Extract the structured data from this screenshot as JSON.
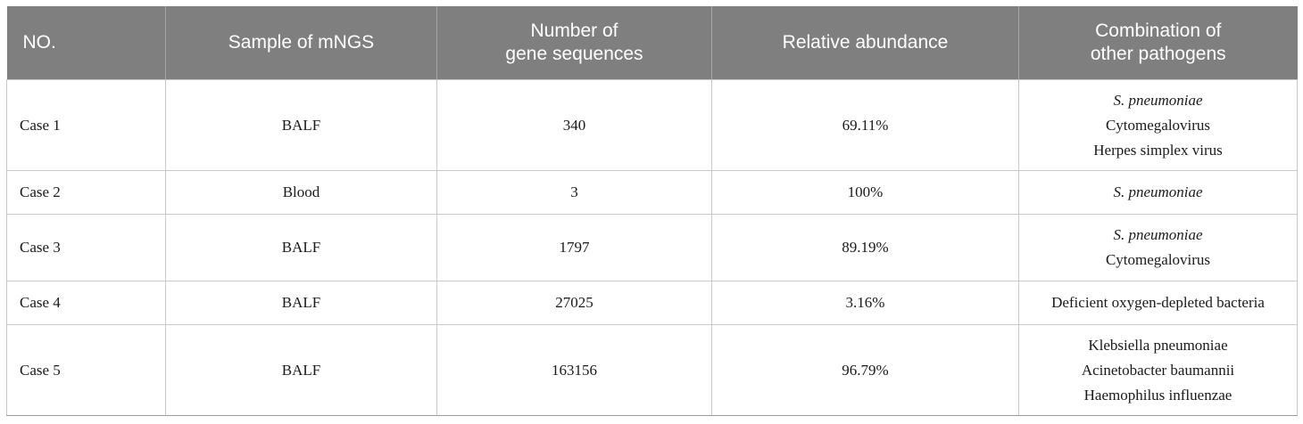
{
  "headers": {
    "no": "NO.",
    "sample": "Sample of mNGS",
    "seq_line1": "Number of",
    "seq_line2": "gene sequences",
    "abundance": "Relative abundance",
    "combo_line1": "Combination of",
    "combo_line2": "other pathogens"
  },
  "rows": [
    {
      "no": "Case 1",
      "sample": "BALF",
      "sequences": "340",
      "abundance": "69.11%",
      "pathogens": [
        {
          "text": "S. pneumoniae",
          "italic": true
        },
        {
          "text": "Cytomegalovirus",
          "italic": false
        },
        {
          "text": "Herpes simplex virus",
          "italic": false
        }
      ]
    },
    {
      "no": "Case 2",
      "sample": "Blood",
      "sequences": "3",
      "abundance": "100%",
      "pathogens": [
        {
          "text": "S. pneumoniae",
          "italic": true
        }
      ]
    },
    {
      "no": "Case 3",
      "sample": "BALF",
      "sequences": "1797",
      "abundance": "89.19%",
      "pathogens": [
        {
          "text": "S. pneumoniae",
          "italic": true
        },
        {
          "text": "Cytomegalovirus",
          "italic": false
        }
      ]
    },
    {
      "no": "Case 4",
      "sample": "BALF",
      "sequences": "27025",
      "abundance": "3.16%",
      "pathogens": [
        {
          "text": "Deficient oxygen-depleted bacteria",
          "italic": false
        }
      ]
    },
    {
      "no": "Case 5",
      "sample": "BALF",
      "sequences": "163156",
      "abundance": "96.79%",
      "pathogens": [
        {
          "text": "Klebsiella pneumoniae",
          "italic": false
        },
        {
          "text": "Acinetobacter baumannii",
          "italic": false
        },
        {
          "text": "Haemophilus influenzae",
          "italic": false
        }
      ]
    }
  ]
}
